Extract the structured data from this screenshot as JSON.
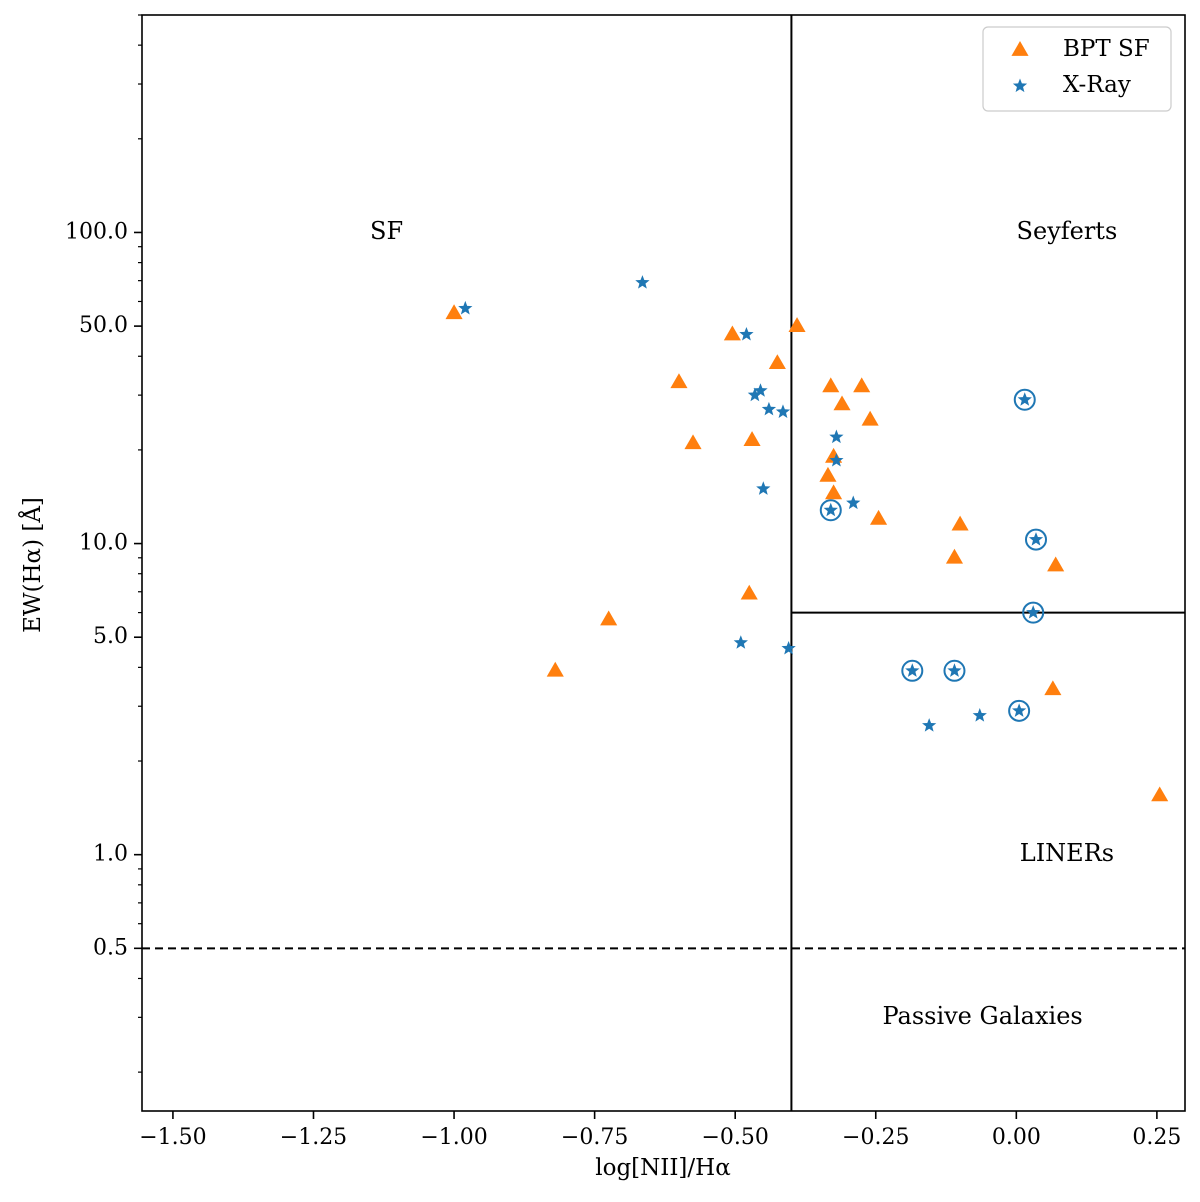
{
  "chart_data": {
    "type": "scatter",
    "title": "",
    "xlabel": "log[NII]/Hα",
    "ylabel": "EW(Hα) [Å]",
    "xlim": [
      -1.555,
      0.3
    ],
    "ylim": [
      0.15,
      500
    ],
    "yscale": "log",
    "xticks": [
      -1.5,
      -1.25,
      -1.0,
      -0.75,
      -0.5,
      -0.25,
      0.0,
      0.25
    ],
    "xtick_labels": [
      "−1.50",
      "−1.25",
      "−1.00",
      "−0.75",
      "−0.50",
      "−0.25",
      "0.00",
      "0.25"
    ],
    "yticks": [
      0.5,
      1.0,
      5.0,
      10.0,
      50.0,
      100.0
    ],
    "ytick_labels": [
      "0.5",
      "1.0",
      "5.0",
      "10.0",
      "50.0",
      "100.0"
    ],
    "grid": false,
    "legend_position": "top-right",
    "dividers": {
      "vertical_x": -0.4,
      "horizontal_y": 6.0,
      "passive_y": 0.5
    },
    "region_labels": [
      {
        "text": "SF",
        "x": -1.12,
        "y": 100
      },
      {
        "text": "Seyferts",
        "x": 0.09,
        "y": 100
      },
      {
        "text": "LINERs",
        "x": 0.09,
        "y": 1.0
      },
      {
        "text": "Passive Galaxies",
        "x": -0.06,
        "y": 0.3
      }
    ],
    "series": [
      {
        "name": "BPT SF",
        "marker": "triangle",
        "color": "#ff7f0e",
        "points": [
          {
            "x": -1.0,
            "y": 55
          },
          {
            "x": -0.82,
            "y": 3.9
          },
          {
            "x": -0.725,
            "y": 5.7
          },
          {
            "x": -0.6,
            "y": 33
          },
          {
            "x": -0.575,
            "y": 21
          },
          {
            "x": -0.505,
            "y": 47
          },
          {
            "x": -0.47,
            "y": 21.5
          },
          {
            "x": -0.475,
            "y": 6.9
          },
          {
            "x": -0.425,
            "y": 38
          },
          {
            "x": -0.39,
            "y": 50
          },
          {
            "x": -0.33,
            "y": 32
          },
          {
            "x": -0.31,
            "y": 28
          },
          {
            "x": -0.275,
            "y": 32
          },
          {
            "x": -0.26,
            "y": 25
          },
          {
            "x": -0.325,
            "y": 19
          },
          {
            "x": -0.335,
            "y": 16.5
          },
          {
            "x": -0.325,
            "y": 14.5
          },
          {
            "x": -0.245,
            "y": 12
          },
          {
            "x": -0.1,
            "y": 11.5
          },
          {
            "x": -0.11,
            "y": 9.0
          },
          {
            "x": 0.07,
            "y": 8.5
          },
          {
            "x": 0.065,
            "y": 3.4
          },
          {
            "x": 0.255,
            "y": 1.55
          }
        ]
      },
      {
        "name": "X-Ray",
        "marker": "star",
        "color": "#1f77b4",
        "points": [
          {
            "x": -0.98,
            "y": 57,
            "circled": false
          },
          {
            "x": -0.665,
            "y": 69,
            "circled": false
          },
          {
            "x": -0.48,
            "y": 47,
            "circled": false
          },
          {
            "x": -0.465,
            "y": 30,
            "circled": false
          },
          {
            "x": -0.455,
            "y": 31,
            "circled": false
          },
          {
            "x": -0.44,
            "y": 27,
            "circled": false
          },
          {
            "x": -0.415,
            "y": 26.5,
            "circled": false
          },
          {
            "x": -0.45,
            "y": 15,
            "circled": false
          },
          {
            "x": -0.32,
            "y": 22,
            "circled": false
          },
          {
            "x": -0.32,
            "y": 18.5,
            "circled": false
          },
          {
            "x": -0.29,
            "y": 13.5,
            "circled": false
          },
          {
            "x": -0.33,
            "y": 12.8,
            "circled": true
          },
          {
            "x": 0.015,
            "y": 29,
            "circled": true
          },
          {
            "x": 0.035,
            "y": 10.3,
            "circled": true
          },
          {
            "x": 0.03,
            "y": 6.0,
            "circled": true
          },
          {
            "x": -0.49,
            "y": 4.8,
            "circled": false
          },
          {
            "x": -0.405,
            "y": 4.6,
            "circled": false
          },
          {
            "x": -0.185,
            "y": 3.9,
            "circled": true
          },
          {
            "x": -0.11,
            "y": 3.9,
            "circled": true
          },
          {
            "x": 0.005,
            "y": 2.9,
            "circled": true
          },
          {
            "x": -0.065,
            "y": 2.8,
            "circled": false
          },
          {
            "x": -0.155,
            "y": 2.6,
            "circled": false
          }
        ]
      }
    ]
  }
}
